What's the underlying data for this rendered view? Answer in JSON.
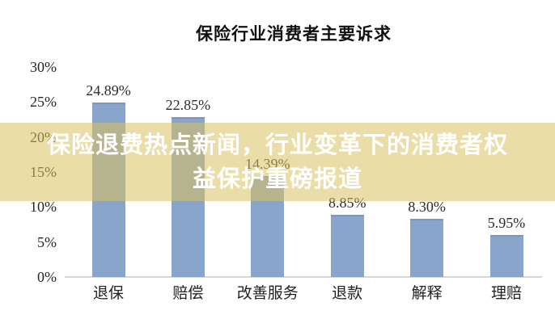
{
  "chart_data": {
    "type": "bar",
    "title": "保险行业消费者主要诉求",
    "categories": [
      "退保",
      "赔偿",
      "改善服务",
      "退款",
      "解释",
      "理赔"
    ],
    "values": [
      24.89,
      22.85,
      14.39,
      8.85,
      8.3,
      5.95
    ],
    "value_labels": [
      "24.89%",
      "22.85%",
      "14.39%",
      "8.85%",
      "8.30%",
      "5.95%"
    ],
    "y_ticks": [
      "30%",
      "25%",
      "20%",
      "15%",
      "10%",
      "5%",
      "0%"
    ],
    "ylim": [
      0,
      30
    ],
    "grid": false,
    "legend": false,
    "bar_color": "#8aa5cb",
    "bar_edge_color": "#7c96be",
    "axis_color": "#d6d6d6"
  },
  "banner": {
    "line1": "保险退费热点新闻，行业变革下的消费者权",
    "line2": "益保护重磅报道",
    "full_text": "保险退费热点新闻，行业变革下的消费者权益保护重磅报道",
    "text_color": "#ffffff",
    "background_color": "rgba(219,193,94,0.55)"
  }
}
